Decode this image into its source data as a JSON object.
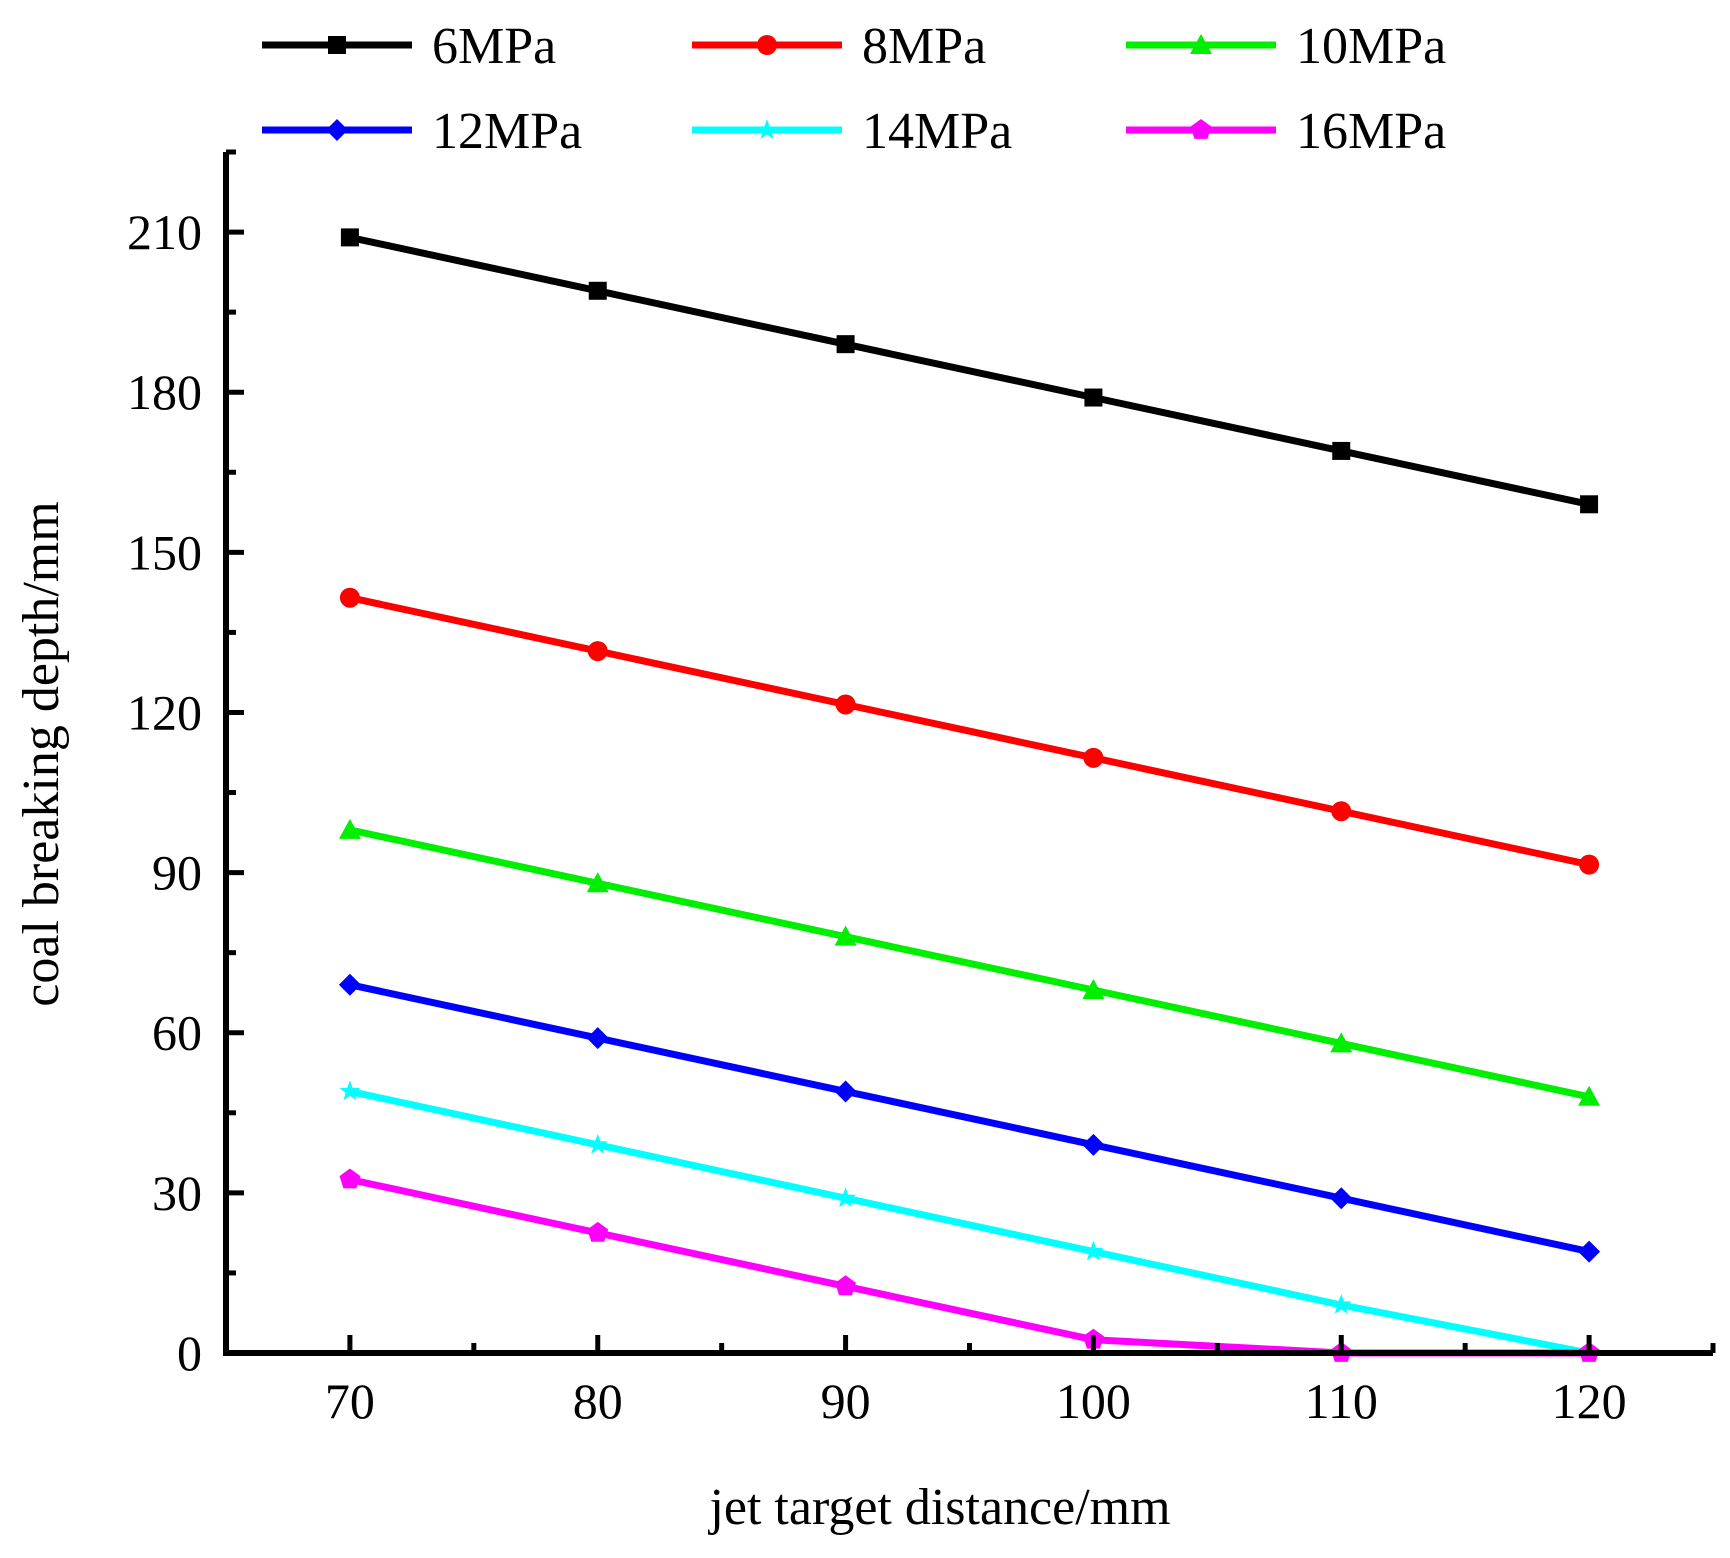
{
  "chart_data": {
    "type": "line",
    "xlabel": "jet target distance/mm",
    "ylabel": "coal breaking depth/mm",
    "x": [
      70,
      80,
      90,
      100,
      110,
      120
    ],
    "xlim": [
      65,
      125
    ],
    "ylim": [
      0,
      225
    ],
    "xticks": [
      70,
      80,
      90,
      100,
      110,
      120
    ],
    "yticks": [
      0,
      30,
      60,
      90,
      120,
      150,
      180,
      210
    ],
    "grid": false,
    "legend_position": "top",
    "series": [
      {
        "name": "6MPa",
        "color": "#000000",
        "marker": "square",
        "values": [
          209,
          199,
          189,
          179,
          169,
          159
        ]
      },
      {
        "name": "8MPa",
        "color": "#ff0000",
        "marker": "circle",
        "values": [
          141.5,
          131.5,
          121.5,
          111.5,
          101.5,
          91.5
        ]
      },
      {
        "name": "10MPa",
        "color": "#00ee00",
        "marker": "triangle",
        "values": [
          98,
          88,
          78,
          68,
          58,
          48
        ]
      },
      {
        "name": "12MPa",
        "color": "#0000ff",
        "marker": "diamond",
        "values": [
          69,
          59,
          49,
          39,
          29,
          19
        ]
      },
      {
        "name": "14MPa",
        "color": "#00ffff",
        "marker": "star",
        "values": [
          49,
          39,
          29,
          19,
          9,
          0
        ]
      },
      {
        "name": "16MPa",
        "color": "#ff00ff",
        "marker": "pentagon",
        "values": [
          32.5,
          22.5,
          12.5,
          2.5,
          0,
          0
        ]
      }
    ]
  }
}
